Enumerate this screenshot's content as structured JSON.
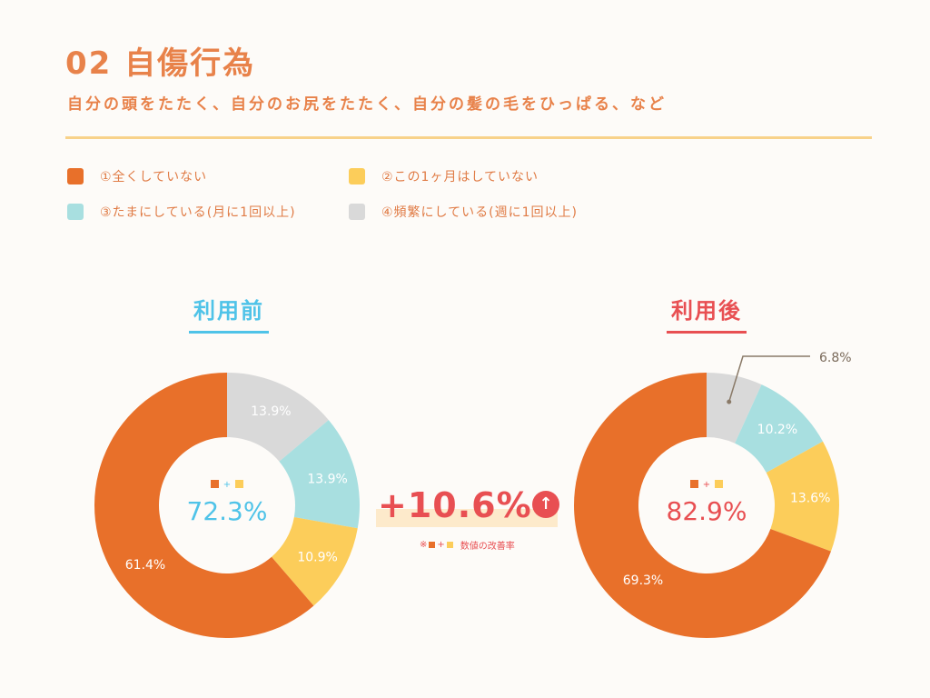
{
  "header": {
    "title": "02 自傷行為",
    "subtitle": "自分の頭をたたく、自分のお尻をたたく、自分の髪の毛をひっぱる、など"
  },
  "legend": [
    {
      "label": "①全くしていない",
      "color": "#e8702a"
    },
    {
      "label": "②この1ヶ月はしていない",
      "color": "#fccd5a"
    },
    {
      "label": "③たまにしている(月に1回以上)",
      "color": "#a8dfe0"
    },
    {
      "label": "④頻繁にしている(週に1回以上)",
      "color": "#d9d9d9"
    }
  ],
  "improvement": {
    "value": "+10.6%",
    "note_prefix": "※",
    "note_plus": "+",
    "note_text": "数値の改善率"
  },
  "chart_data": [
    {
      "type": "pie",
      "title": "利用前",
      "title_color": "#4fc3e8",
      "categories": [
        "①全くしていない",
        "②この1ヶ月はしていない",
        "③たまにしている(月に1回以上)",
        "④頻繁にしている(週に1回以上)"
      ],
      "values": [
        61.4,
        10.9,
        13.9,
        13.9
      ],
      "labels": [
        "61.4%",
        "10.9%",
        "13.9%",
        "13.9%"
      ],
      "center_symbol_plus": "+",
      "center_value": "72.3%",
      "center_color": "#4fc3e8"
    },
    {
      "type": "pie",
      "title": "利用後",
      "title_color": "#e84f52",
      "categories": [
        "①全くしていない",
        "②この1ヶ月はしていない",
        "③たまにしている(月に1回以上)",
        "④頻繁にしている(週に1回以上)"
      ],
      "values": [
        69.3,
        13.6,
        10.2,
        6.8
      ],
      "labels": [
        "69.3%",
        "13.6%",
        "10.2%",
        "6.8%"
      ],
      "center_symbol_plus": "+",
      "center_value": "82.9%",
      "center_color": "#e84f52"
    }
  ]
}
